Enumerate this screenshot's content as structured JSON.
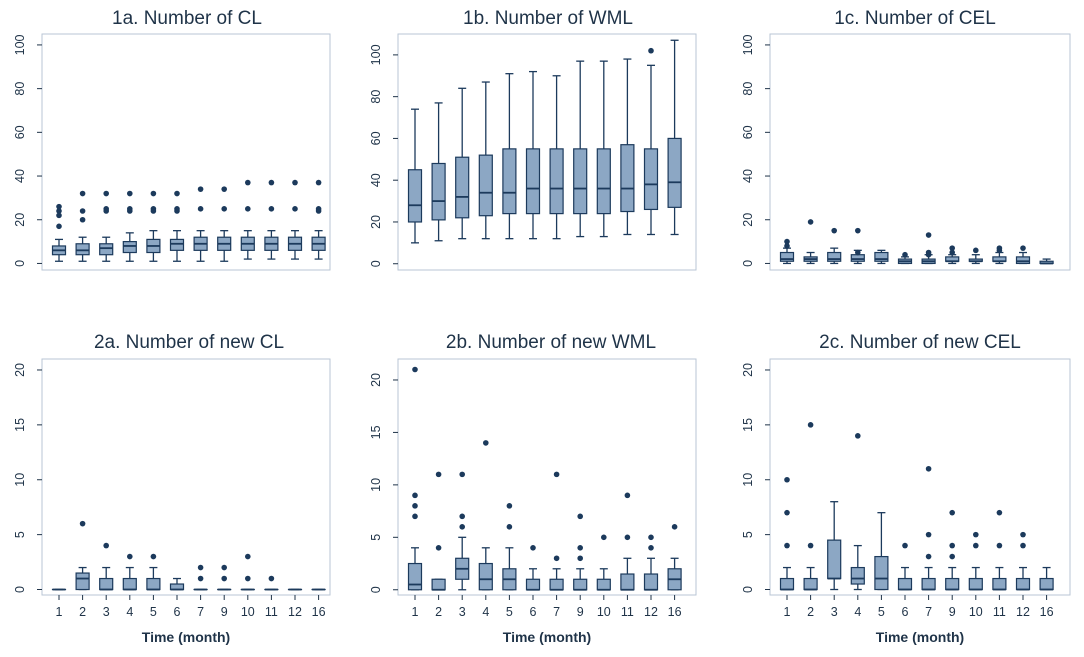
{
  "colors": {
    "box_fill": "#8ca7c4",
    "box_stroke": "#1c3a5c",
    "outlier": "#1c3a5c",
    "frame": "#b9c6d4",
    "text": "#1f3348"
  },
  "chart_data": [
    {
      "type": "boxplot",
      "title": "1a. Number of CL",
      "xlabel": "",
      "ylabel": "",
      "categories": [
        "1",
        "2",
        "3",
        "4",
        "5",
        "6",
        "7",
        "9",
        "10",
        "11",
        "12",
        "16"
      ],
      "yticks": [
        0,
        20,
        40,
        60,
        80,
        100
      ],
      "ylim": [
        -3,
        105
      ],
      "boxes": [
        {
          "min": 1,
          "q1": 4,
          "median": 6,
          "q3": 8,
          "max": 11
        },
        {
          "min": 1,
          "q1": 4,
          "median": 6,
          "q3": 9,
          "max": 12
        },
        {
          "min": 1,
          "q1": 4,
          "median": 7,
          "q3": 9,
          "max": 12
        },
        {
          "min": 1,
          "q1": 5,
          "median": 8,
          "q3": 10,
          "max": 14
        },
        {
          "min": 1,
          "q1": 5,
          "median": 8,
          "q3": 11,
          "max": 15
        },
        {
          "min": 1,
          "q1": 6,
          "median": 9,
          "q3": 11,
          "max": 15
        },
        {
          "min": 1,
          "q1": 6,
          "median": 9,
          "q3": 12,
          "max": 15
        },
        {
          "min": 1,
          "q1": 6,
          "median": 9,
          "q3": 12,
          "max": 15
        },
        {
          "min": 2,
          "q1": 6,
          "median": 9,
          "q3": 12,
          "max": 15
        },
        {
          "min": 2,
          "q1": 6,
          "median": 9,
          "q3": 12,
          "max": 15
        },
        {
          "min": 2,
          "q1": 6,
          "median": 9,
          "q3": 12,
          "max": 15
        },
        {
          "min": 2,
          "q1": 6,
          "median": 9,
          "q3": 12,
          "max": 15
        }
      ],
      "outliers": [
        [
          17,
          22,
          24,
          26
        ],
        [
          20,
          24,
          32
        ],
        [
          24,
          25,
          32
        ],
        [
          24,
          25,
          32
        ],
        [
          24,
          25,
          32
        ],
        [
          24,
          25,
          32
        ],
        [
          25,
          34
        ],
        [
          25,
          34
        ],
        [
          25,
          37
        ],
        [
          25,
          37
        ],
        [
          25,
          37
        ],
        [
          24,
          25,
          37
        ]
      ]
    },
    {
      "type": "boxplot",
      "title": "1b. Number of WML",
      "xlabel": "",
      "ylabel": "",
      "categories": [
        "1",
        "2",
        "3",
        "4",
        "5",
        "6",
        "7",
        "9",
        "10",
        "11",
        "12",
        "16"
      ],
      "yticks": [
        0,
        20,
        40,
        60,
        80,
        100
      ],
      "ylim": [
        -3,
        110
      ],
      "boxes": [
        {
          "min": 10,
          "q1": 20,
          "median": 28,
          "q3": 45,
          "max": 74
        },
        {
          "min": 11,
          "q1": 21,
          "median": 30,
          "q3": 48,
          "max": 77
        },
        {
          "min": 12,
          "q1": 22,
          "median": 32,
          "q3": 51,
          "max": 84
        },
        {
          "min": 12,
          "q1": 23,
          "median": 34,
          "q3": 52,
          "max": 87
        },
        {
          "min": 12,
          "q1": 24,
          "median": 34,
          "q3": 55,
          "max": 91
        },
        {
          "min": 12,
          "q1": 24,
          "median": 36,
          "q3": 55,
          "max": 92
        },
        {
          "min": 12,
          "q1": 24,
          "median": 36,
          "q3": 55,
          "max": 90
        },
        {
          "min": 13,
          "q1": 24,
          "median": 36,
          "q3": 55,
          "max": 97
        },
        {
          "min": 13,
          "q1": 24,
          "median": 36,
          "q3": 55,
          "max": 97
        },
        {
          "min": 14,
          "q1": 25,
          "median": 36,
          "q3": 57,
          "max": 98
        },
        {
          "min": 14,
          "q1": 26,
          "median": 38,
          "q3": 55,
          "max": 95
        },
        {
          "min": 14,
          "q1": 27,
          "median": 39,
          "q3": 60,
          "max": 107
        }
      ],
      "outliers": [
        [],
        [],
        [],
        [],
        [],
        [],
        [],
        [],
        [],
        [],
        [
          102
        ],
        []
      ]
    },
    {
      "type": "boxplot",
      "title": "1c. Number of CEL",
      "xlabel": "",
      "ylabel": "",
      "categories": [
        "1",
        "2",
        "3",
        "4",
        "5",
        "6",
        "7",
        "9",
        "10",
        "11",
        "12",
        "16"
      ],
      "yticks": [
        0,
        20,
        40,
        60,
        80,
        100
      ],
      "ylim": [
        -3,
        105
      ],
      "boxes": [
        {
          "min": 0,
          "q1": 1,
          "median": 2,
          "q3": 5,
          "max": 7
        },
        {
          "min": 0,
          "q1": 1,
          "median": 2,
          "q3": 3,
          "max": 5
        },
        {
          "min": 0,
          "q1": 1,
          "median": 2,
          "q3": 5,
          "max": 7
        },
        {
          "min": 0,
          "q1": 1,
          "median": 2,
          "q3": 4,
          "max": 6
        },
        {
          "min": 0,
          "q1": 1,
          "median": 2,
          "q3": 5,
          "max": 6
        },
        {
          "min": 0,
          "q1": 0,
          "median": 1,
          "q3": 2,
          "max": 3
        },
        {
          "min": 0,
          "q1": 0,
          "median": 1,
          "q3": 2,
          "max": 4
        },
        {
          "min": 0,
          "q1": 1,
          "median": 1,
          "q3": 3,
          "max": 4
        },
        {
          "min": 0,
          "q1": 1,
          "median": 1,
          "q3": 2,
          "max": 4
        },
        {
          "min": 0,
          "q1": 1,
          "median": 1,
          "q3": 3,
          "max": 5
        },
        {
          "min": 0,
          "q1": 0,
          "median": 1,
          "q3": 3,
          "max": 5
        },
        {
          "min": 0,
          "q1": 0,
          "median": 0,
          "q3": 1,
          "max": 2
        }
      ],
      "outliers": [
        [
          8,
          10
        ],
        [
          19
        ],
        [
          15
        ],
        [
          5,
          15
        ],
        [],
        [
          4
        ],
        [
          4,
          5,
          13
        ],
        [
          5,
          7
        ],
        [
          6
        ],
        [
          6,
          7
        ],
        [
          7
        ],
        []
      ]
    },
    {
      "type": "boxplot",
      "title": "2a. Number of new CL",
      "xlabel": "Time (month)",
      "ylabel": "",
      "categories": [
        "1",
        "2",
        "3",
        "4",
        "5",
        "6",
        "7",
        "9",
        "10",
        "11",
        "12",
        "16"
      ],
      "yticks": [
        0,
        5,
        10,
        15,
        20
      ],
      "ylim": [
        -0.5,
        21
      ],
      "boxes": [
        {
          "min": 0,
          "q1": 0,
          "median": 0,
          "q3": 0,
          "max": 0
        },
        {
          "min": 0,
          "q1": 0,
          "median": 1,
          "q3": 1.5,
          "max": 2
        },
        {
          "min": 0,
          "q1": 0,
          "median": 0,
          "q3": 1,
          "max": 2
        },
        {
          "min": 0,
          "q1": 0,
          "median": 0,
          "q3": 1,
          "max": 2
        },
        {
          "min": 0,
          "q1": 0,
          "median": 0,
          "q3": 1,
          "max": 2
        },
        {
          "min": 0,
          "q1": 0,
          "median": 0,
          "q3": 0.5,
          "max": 1
        },
        {
          "min": 0,
          "q1": 0,
          "median": 0,
          "q3": 0,
          "max": 0
        },
        {
          "min": 0,
          "q1": 0,
          "median": 0,
          "q3": 0,
          "max": 0
        },
        {
          "min": 0,
          "q1": 0,
          "median": 0,
          "q3": 0,
          "max": 0
        },
        {
          "min": 0,
          "q1": 0,
          "median": 0,
          "q3": 0,
          "max": 0
        },
        {
          "min": 0,
          "q1": 0,
          "median": 0,
          "q3": 0,
          "max": 0
        },
        {
          "min": 0,
          "q1": 0,
          "median": 0,
          "q3": 0,
          "max": 0
        }
      ],
      "outliers": [
        [],
        [
          6
        ],
        [
          4
        ],
        [
          3
        ],
        [
          3
        ],
        [],
        [
          1,
          2
        ],
        [
          1,
          2
        ],
        [
          1,
          3
        ],
        [
          1
        ],
        [],
        []
      ]
    },
    {
      "type": "boxplot",
      "title": "2b. Number of new WML",
      "xlabel": "Time (month)",
      "ylabel": "",
      "categories": [
        "1",
        "2",
        "3",
        "4",
        "5",
        "6",
        "7",
        "9",
        "10",
        "11",
        "12",
        "16"
      ],
      "yticks": [
        0,
        5,
        10,
        15,
        20
      ],
      "ylim": [
        -0.5,
        22
      ],
      "boxes": [
        {
          "min": 0,
          "q1": 0,
          "median": 0.5,
          "q3": 2.5,
          "max": 4
        },
        {
          "min": 0,
          "q1": 0,
          "median": 0,
          "q3": 1,
          "max": 1
        },
        {
          "min": 0,
          "q1": 1,
          "median": 2,
          "q3": 3,
          "max": 5
        },
        {
          "min": 0,
          "q1": 0,
          "median": 1,
          "q3": 2.5,
          "max": 4
        },
        {
          "min": 0,
          "q1": 0,
          "median": 1,
          "q3": 2,
          "max": 4
        },
        {
          "min": 0,
          "q1": 0,
          "median": 0,
          "q3": 1,
          "max": 2
        },
        {
          "min": 0,
          "q1": 0,
          "median": 0,
          "q3": 1,
          "max": 2
        },
        {
          "min": 0,
          "q1": 0,
          "median": 0,
          "q3": 1,
          "max": 2
        },
        {
          "min": 0,
          "q1": 0,
          "median": 0,
          "q3": 1,
          "max": 2
        },
        {
          "min": 0,
          "q1": 0,
          "median": 0,
          "q3": 1.5,
          "max": 3
        },
        {
          "min": 0,
          "q1": 0,
          "median": 0,
          "q3": 1.5,
          "max": 3
        },
        {
          "min": 0,
          "q1": 0,
          "median": 1,
          "q3": 2,
          "max": 3
        }
      ],
      "outliers": [
        [
          7,
          8,
          9,
          21
        ],
        [
          4,
          11
        ],
        [
          6,
          7,
          11
        ],
        [
          14
        ],
        [
          6,
          8
        ],
        [
          4
        ],
        [
          3,
          11
        ],
        [
          3,
          4,
          7
        ],
        [
          5
        ],
        [
          5,
          9
        ],
        [
          4,
          5
        ],
        [
          6
        ]
      ]
    },
    {
      "type": "boxplot",
      "title": "2c. Number of new CEL",
      "xlabel": "Time (month)",
      "ylabel": "",
      "categories": [
        "1",
        "2",
        "3",
        "4",
        "5",
        "6",
        "7",
        "9",
        "10",
        "11",
        "12",
        "16"
      ],
      "yticks": [
        0,
        5,
        10,
        15,
        20
      ],
      "ylim": [
        -0.5,
        21
      ],
      "boxes": [
        {
          "min": 0,
          "q1": 0,
          "median": 0,
          "q3": 1,
          "max": 2
        },
        {
          "min": 0,
          "q1": 0,
          "median": 0,
          "q3": 1,
          "max": 2
        },
        {
          "min": 0,
          "q1": 1,
          "median": 1,
          "q3": 4.5,
          "max": 8
        },
        {
          "min": 0,
          "q1": 0.5,
          "median": 1,
          "q3": 2,
          "max": 4
        },
        {
          "min": 0,
          "q1": 0,
          "median": 1,
          "q3": 3,
          "max": 7
        },
        {
          "min": 0,
          "q1": 0,
          "median": 0,
          "q3": 1,
          "max": 2
        },
        {
          "min": 0,
          "q1": 0,
          "median": 0,
          "q3": 1,
          "max": 2
        },
        {
          "min": 0,
          "q1": 0,
          "median": 0,
          "q3": 1,
          "max": 2
        },
        {
          "min": 0,
          "q1": 0,
          "median": 0,
          "q3": 1,
          "max": 2
        },
        {
          "min": 0,
          "q1": 0,
          "median": 0,
          "q3": 1,
          "max": 2
        },
        {
          "min": 0,
          "q1": 0,
          "median": 0,
          "q3": 1,
          "max": 2
        },
        {
          "min": 0,
          "q1": 0,
          "median": 0,
          "q3": 1,
          "max": 2
        }
      ],
      "outliers": [
        [
          4,
          7,
          10
        ],
        [
          4,
          15
        ],
        [],
        [
          14
        ],
        [],
        [
          4
        ],
        [
          3,
          5,
          11
        ],
        [
          3,
          4,
          7
        ],
        [
          4,
          5
        ],
        [
          4,
          7
        ],
        [
          4,
          5
        ],
        []
      ]
    }
  ]
}
